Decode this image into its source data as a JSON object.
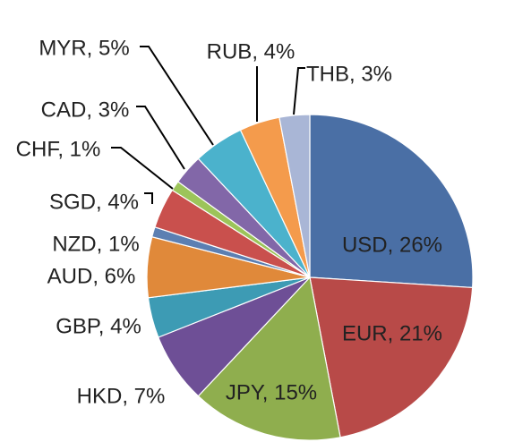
{
  "chart_data": {
    "type": "pie",
    "title": "",
    "start_angle_deg": 0,
    "direction": "clockwise",
    "slices": [
      {
        "label": "USD, 26%",
        "category": "USD",
        "value": 26,
        "color": "#4a6fa5"
      },
      {
        "label": "EUR, 21%",
        "category": "EUR",
        "value": 21,
        "color": "#b84a48"
      },
      {
        "label": "JPY, 15%",
        "category": "JPY",
        "value": 15,
        "color": "#8fae4e"
      },
      {
        "label": "HKD, 7%",
        "category": "HKD",
        "value": 7,
        "color": "#6e4f96"
      },
      {
        "label": "GBP, 4%",
        "category": "GBP",
        "value": 4,
        "color": "#3d9bb4"
      },
      {
        "label": "AUD, 6%",
        "category": "AUD",
        "value": 6,
        "color": "#e0893a"
      },
      {
        "label": "NZD, 1%",
        "category": "NZD",
        "value": 1,
        "color": "#5c7fb2"
      },
      {
        "label": "SGD, 4%",
        "category": "SGD",
        "value": 4,
        "color": "#c9504d"
      },
      {
        "label": "CHF, 1%",
        "category": "CHF",
        "value": 1,
        "color": "#9cc45a"
      },
      {
        "label": "CAD, 3%",
        "category": "CAD",
        "value": 3,
        "color": "#8267a8"
      },
      {
        "label": "MYR, 5%",
        "category": "MYR",
        "value": 5,
        "color": "#4bb2cc"
      },
      {
        "label": "RUB, 4%",
        "category": "RUB",
        "value": 4,
        "color": "#f49b4c"
      },
      {
        "label": "THB, 3%",
        "category": "THB",
        "value": 3,
        "color": "#a9b6d6"
      }
    ]
  }
}
